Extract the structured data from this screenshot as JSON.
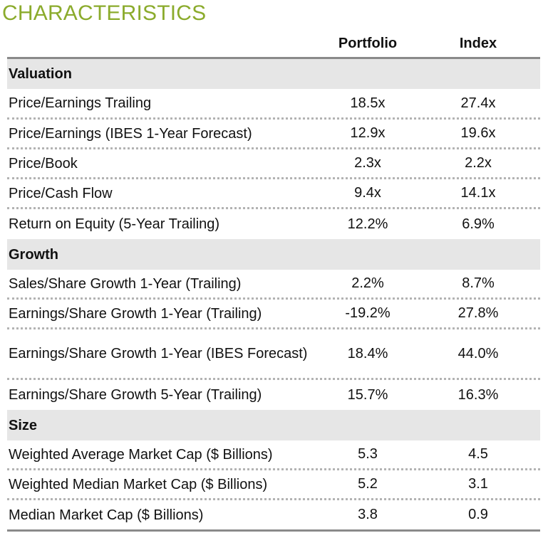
{
  "title": "CHARACTERISTICS",
  "columns": {
    "portfolio": "Portfolio",
    "index": "Index"
  },
  "sections": [
    {
      "name": "Valuation",
      "rows": [
        {
          "label": "Price/Earnings Trailing",
          "portfolio": "18.5x",
          "index": "27.4x"
        },
        {
          "label": "Price/Earnings (IBES 1-Year Forecast)",
          "portfolio": "12.9x",
          "index": "19.6x"
        },
        {
          "label": "Price/Book",
          "portfolio": "2.3x",
          "index": "2.2x"
        },
        {
          "label": "Price/Cash Flow",
          "portfolio": "9.4x",
          "index": "14.1x"
        },
        {
          "label": "Return on Equity (5-Year Trailing)",
          "portfolio": "12.2%",
          "index": "6.9%"
        }
      ]
    },
    {
      "name": "Growth",
      "rows": [
        {
          "label": "Sales/Share Growth 1-Year (Trailing)",
          "portfolio": "2.2%",
          "index": "8.7%"
        },
        {
          "label": "Earnings/Share Growth 1-Year (Trailing)",
          "portfolio": "-19.2%",
          "index": "27.8%"
        },
        {
          "label": "Earnings/Share Growth 1-Year (IBES Forecast)",
          "portfolio": "18.4%",
          "index": "44.0%"
        },
        {
          "label": "Earnings/Share Growth 5-Year (Trailing)",
          "portfolio": "15.7%",
          "index": "16.3%"
        }
      ]
    },
    {
      "name": "Size",
      "rows": [
        {
          "label": "Weighted Average Market Cap ($ Billions)",
          "portfolio": "5.3",
          "index": "4.5"
        },
        {
          "label": "Weighted Median Market Cap ($ Billions)",
          "portfolio": "5.2",
          "index": "3.1"
        },
        {
          "label": "Median Market Cap ($ Billions)",
          "portfolio": "3.8",
          "index": "0.9"
        }
      ]
    }
  ]
}
